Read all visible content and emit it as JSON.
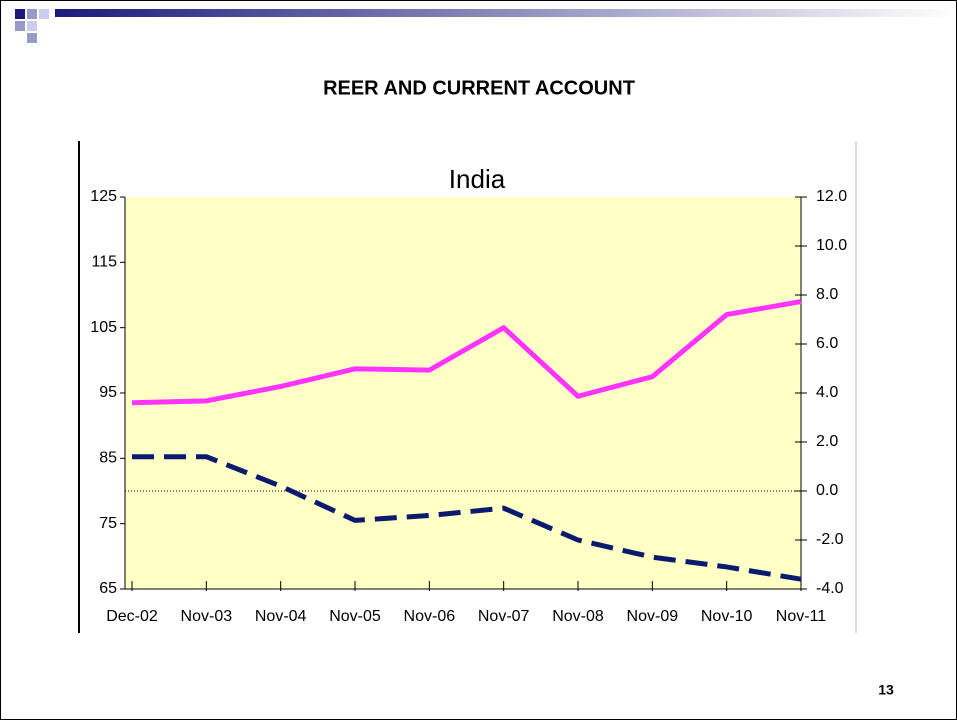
{
  "slide": {
    "title": "REER AND CURRENT ACCOUNT",
    "page_number": "13"
  },
  "chart_data": {
    "type": "line",
    "title": "India",
    "categories": [
      "Dec-02",
      "Nov-03",
      "Nov-04",
      "Nov-05",
      "Nov-06",
      "Nov-07",
      "Nov-08",
      "Nov-09",
      "Nov-10",
      "Nov-11"
    ],
    "series": [
      {
        "color": "#ff33ff",
        "values": [
          93.5,
          93.8,
          96,
          98.7,
          98.5,
          105,
          94.5,
          97.5,
          107,
          109
        ]
      },
      {
        "color": "#0a1a6e",
        "axis": "y2",
        "values": [
          1.4,
          1.4,
          0.2,
          -1.2,
          -1.0,
          -0.7,
          -2.0,
          -2.7,
          -3.1,
          -3.6
        ]
      }
    ],
    "ylim": [
      65,
      125
    ],
    "yticks": [
      65,
      75,
      85,
      95,
      105,
      115,
      125
    ],
    "y2lim": [
      -4,
      12
    ],
    "y2ticks": [
      {
        "value": -4,
        "label": "-4.0"
      },
      {
        "value": -2,
        "label": "-2.0"
      },
      {
        "value": 0,
        "label": "0.0"
      },
      {
        "value": 2,
        "label": "2.0"
      },
      {
        "value": 4,
        "label": "4.0"
      },
      {
        "value": 6,
        "label": "6.0"
      },
      {
        "value": 8,
        "label": "8.0"
      },
      {
        "value": 10,
        "label": "10.0"
      },
      {
        "value": 12,
        "label": "12.0"
      }
    ]
  }
}
